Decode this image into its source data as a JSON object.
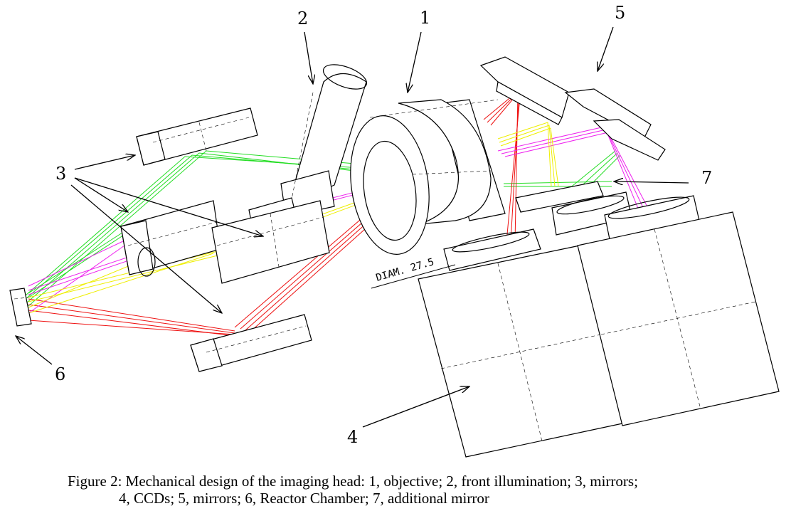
{
  "labels": {
    "l1": "1",
    "l2": "2",
    "l3": "3",
    "l4": "4",
    "l5": "5",
    "l6": "6",
    "l7": "7"
  },
  "dimension_text": "DIAM. 27.5",
  "caption": {
    "line1": "Figure 2: Mechanical design of the imaging head: 1, objective; 2, front illumination; 3, mirrors;",
    "line2": "4, CCDs; 5, mirrors; 6, Reactor Chamber; 7, additional mirror"
  },
  "colors": {
    "green_rays": "#22dd22",
    "red_rays": "#ee1111",
    "magenta_rays": "#ee22ee",
    "yellow_rays": "#eeee00"
  }
}
